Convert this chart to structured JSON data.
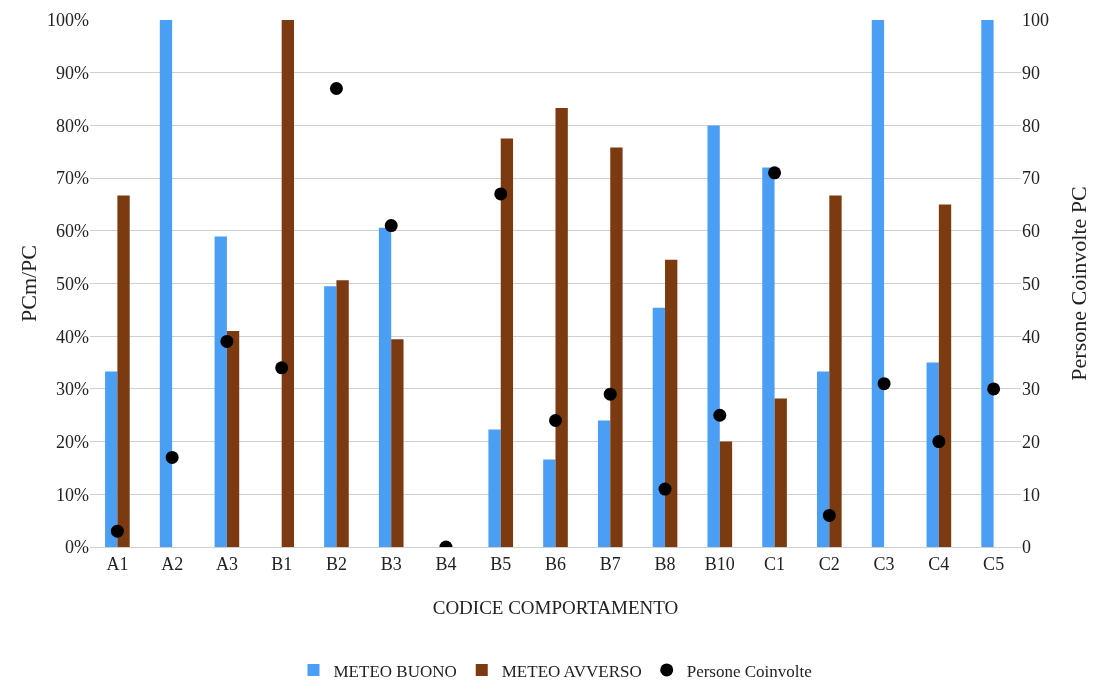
{
  "chart_data": {
    "type": "bar",
    "xlabel": "CODICE COMPORTAMENTO",
    "ylabel": "PCm/PC",
    "y2label": "Persone Coinvolte PC",
    "categories": [
      "A1",
      "A2",
      "A3",
      "B1",
      "B2",
      "B3",
      "B4",
      "B5",
      "B6",
      "B7",
      "B8",
      "B10",
      "C1",
      "C2",
      "C3",
      "C4",
      "C5"
    ],
    "series": [
      {
        "name": "METEO BUONO",
        "color": "#4a9ff5",
        "values": [
          33.3,
          100,
          58.9,
          0,
          49.5,
          60.6,
          0,
          22.3,
          16.6,
          24,
          45.4,
          80,
          72,
          33.3,
          100,
          35,
          100
        ]
      },
      {
        "name": "METEO AVVERSO",
        "color": "#7b3a10",
        "values": [
          66.7,
          0,
          41,
          100,
          50.6,
          39.4,
          0,
          77.5,
          83.3,
          75.8,
          54.5,
          20,
          28.2,
          66.7,
          0,
          65,
          0
        ]
      },
      {
        "name": "Persone Coinvolte",
        "type": "scatter",
        "axis": "y2",
        "marker": "circle",
        "color": "#000000",
        "values": [
          3,
          17,
          39,
          34,
          87,
          61,
          0,
          67,
          24,
          29,
          11,
          25,
          71,
          6,
          31,
          20,
          30
        ]
      }
    ],
    "ylim": [
      0,
      100
    ],
    "yticks": [
      {
        "value": 0,
        "label": "0%"
      },
      {
        "value": 10,
        "label": "10%"
      },
      {
        "value": 20,
        "label": "20%"
      },
      {
        "value": 30,
        "label": "30%"
      },
      {
        "value": 40,
        "label": "40%"
      },
      {
        "value": 50,
        "label": "50%"
      },
      {
        "value": 60,
        "label": "60%"
      },
      {
        "value": 70,
        "label": "70%"
      },
      {
        "value": 80,
        "label": "80%"
      },
      {
        "value": 90,
        "label": "90%"
      },
      {
        "value": 100,
        "label": "100%"
      }
    ],
    "y2lim": [
      0,
      100
    ],
    "y2ticks": [
      0,
      10,
      20,
      30,
      40,
      50,
      60,
      70,
      80,
      90,
      100
    ],
    "grid": "y",
    "legend": "bottom"
  }
}
